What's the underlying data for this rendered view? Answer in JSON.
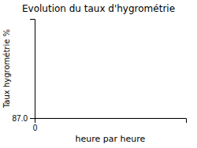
{
  "chart_data": {
    "type": "line",
    "title": "Evolution du taux d'hygrométrie",
    "xlabel": "heure par heure",
    "ylabel": "Taux hygrométrie %",
    "xlim": [
      0,
      10
    ],
    "ylim": [
      87.0,
      100.0
    ],
    "xticks": [
      0
    ],
    "yticks": [
      {
        "value": 87.0,
        "label": "87.0"
      }
    ],
    "grid": "y"
  }
}
